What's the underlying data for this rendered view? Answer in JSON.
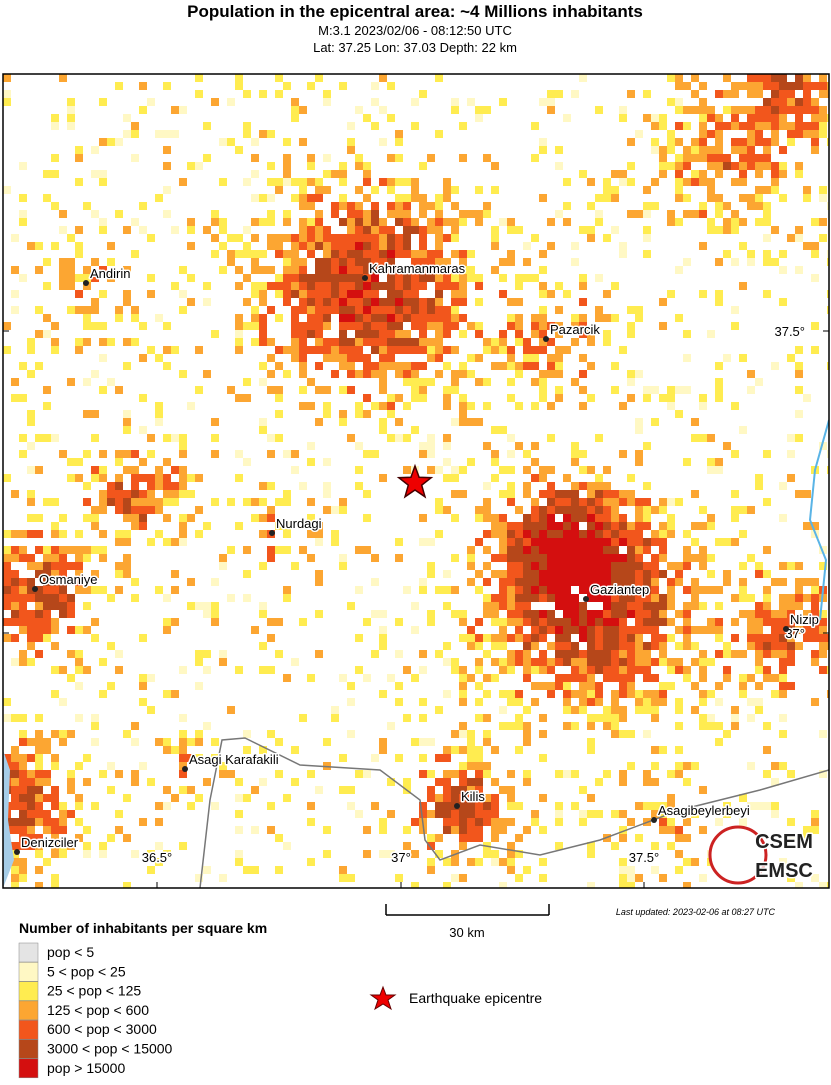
{
  "header": {
    "title": "Population in the epicentral area: ~4 Millions inhabitants",
    "lines": [
      "M:3.1 2023/02/06 - 08:12:50 UTC",
      "Lat: 37.25 Lon: 37.03 Depth: 22 km"
    ]
  },
  "map": {
    "cities": [
      "Andirin",
      "Kahramanmaras",
      "Pazarcik",
      "Nurdagi",
      "Osmaniye",
      "Gaziantep",
      "Nizip",
      "Asagi Karafakili",
      "Kilis",
      "Asagibeylerbeyi",
      "Denizciler"
    ],
    "axis_labels": [
      "36.5°",
      "37°",
      "37.5°",
      "37.5°",
      "37°"
    ],
    "scale": "30 km",
    "last_updated": "Last updated: 2023-02-06 at 08:27 UTC",
    "logo": [
      "CSEM",
      "EMSC"
    ]
  },
  "legend": {
    "title": "Number of inhabitants per square km",
    "items": [
      {
        "label": "pop < 5",
        "color": "#e4e4e4"
      },
      {
        "label": "5 < pop < 25",
        "color": "#fff8c4"
      },
      {
        "label": "25 < pop < 125",
        "color": "#ffec50"
      },
      {
        "label": "125 < pop < 600",
        "color": "#fca632"
      },
      {
        "label": "600 < pop < 3000",
        "color": "#f2561c"
      },
      {
        "label": "3000 < pop < 15000",
        "color": "#b6471a"
      },
      {
        "label": "pop > 15000",
        "color": "#d40f0f"
      }
    ],
    "epicentre": "Earthquake epicentre"
  }
}
